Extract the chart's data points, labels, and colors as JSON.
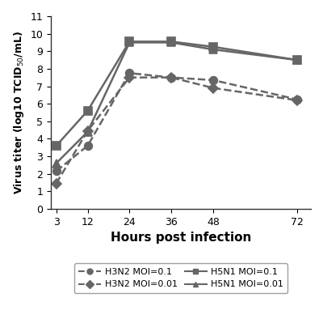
{
  "x": [
    3,
    12,
    24,
    36,
    48,
    72
  ],
  "series": {
    "H3N2 MOI=0.1": [
      2.15,
      3.6,
      7.75,
      7.5,
      7.35,
      6.25
    ],
    "H3N2 MOI=0.01": [
      1.45,
      4.45,
      7.5,
      7.5,
      6.9,
      6.2
    ],
    "H5N1 MOI=0.1": [
      3.6,
      5.6,
      9.55,
      9.55,
      9.25,
      8.5
    ],
    "H5N1 MOI=0.01": [
      2.6,
      4.4,
      9.5,
      9.5,
      9.1,
      8.5
    ]
  },
  "styles": {
    "H3N2 MOI=0.1": {
      "color": "#666666",
      "linestyle": "--",
      "marker": "o",
      "markersize": 7,
      "filled": true
    },
    "H3N2 MOI=0.01": {
      "color": "#666666",
      "linestyle": "--",
      "marker": "D",
      "markersize": 6,
      "filled": true
    },
    "H5N1 MOI=0.1": {
      "color": "#666666",
      "linestyle": "-",
      "marker": "s",
      "markersize": 7,
      "filled": true
    },
    "H5N1 MOI=0.01": {
      "color": "#666666",
      "linestyle": "-",
      "marker": "^",
      "markersize": 7,
      "filled": true
    }
  },
  "xlabel": "Hours post infection",
  "ylim": [
    0,
    11
  ],
  "yticks": [
    0,
    1,
    2,
    3,
    4,
    5,
    6,
    7,
    8,
    9,
    10,
    11
  ],
  "xticks": [
    3,
    12,
    24,
    36,
    48,
    72
  ],
  "legend_order": [
    "H3N2 MOI=0.1",
    "H3N2 MOI=0.01",
    "H5N1 MOI=0.1",
    "H5N1 MOI=0.01"
  ],
  "background_color": "#ffffff",
  "linewidth": 1.8,
  "marker_color": "#666666"
}
